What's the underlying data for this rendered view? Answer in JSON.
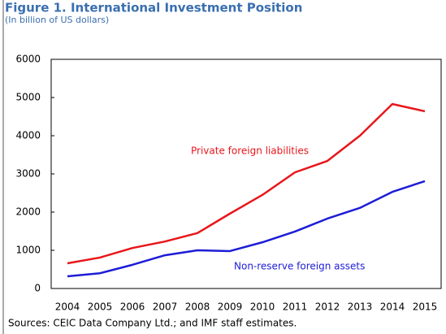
{
  "chart_data": {
    "type": "line",
    "title": "Figure 1. International Investment Position",
    "subtitle": "(In billion of US dollars)",
    "categories": [
      "2004",
      "2005",
      "2006",
      "2007",
      "2008",
      "2009",
      "2010",
      "2011",
      "2012",
      "2013",
      "2014",
      "2015"
    ],
    "series": [
      {
        "name": "Private foreign liabilities",
        "color": "#e8161b",
        "values": [
          660,
          810,
          1060,
          1230,
          1450,
          1960,
          2450,
          3040,
          3340,
          4000,
          4830,
          4640
        ]
      },
      {
        "name": "Non-reserve foreign assets",
        "color": "#1d1dd6",
        "values": [
          320,
          400,
          620,
          870,
          1000,
          980,
          1210,
          1490,
          1830,
          2110,
          2530,
          2810
        ]
      }
    ],
    "ylim": [
      0,
      6000
    ],
    "yticks": [
      0,
      1000,
      2000,
      3000,
      4000,
      5000,
      6000
    ],
    "grid": false,
    "source": "Sources: CEIC Data Company Ltd.; and IMF staff estimates."
  }
}
